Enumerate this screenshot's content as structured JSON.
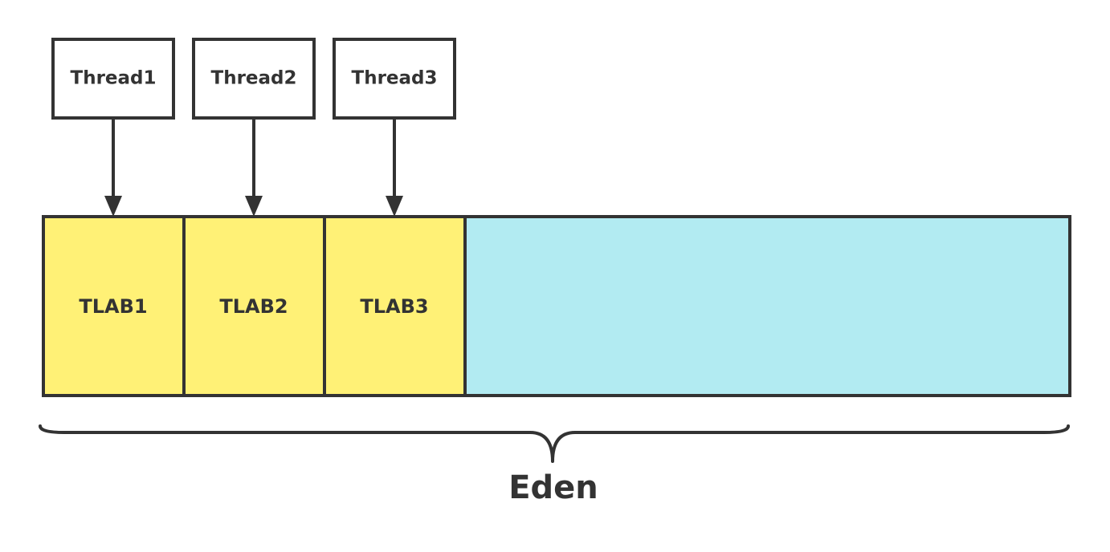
{
  "colors": {
    "stroke": "#333333",
    "tlab_fill": "#fff176",
    "eden_free_fill": "#b2ebf2",
    "thread_fill": "#ffffff"
  },
  "threads": [
    {
      "label": "Thread1"
    },
    {
      "label": "Thread2"
    },
    {
      "label": "Thread3"
    }
  ],
  "tlabs": [
    {
      "label": "TLAB1"
    },
    {
      "label": "TLAB2"
    },
    {
      "label": "TLAB3"
    }
  ],
  "eden": {
    "label": "Eden"
  }
}
